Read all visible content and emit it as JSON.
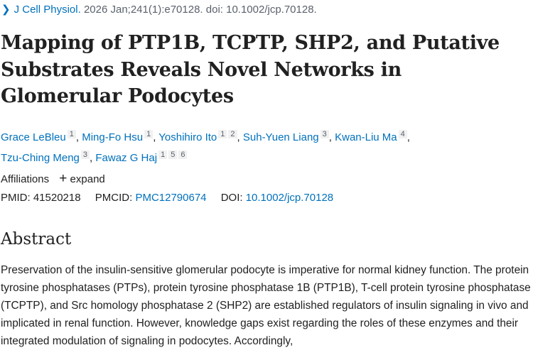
{
  "citation": {
    "journal": "J Cell Physiol.",
    "details": "2026 Jan;241(1):e70128. doi: 10.1002/jcp.70128."
  },
  "title": "Mapping of PTP1B, TCPTP, SHP2, and Putative Substrates Reveals Novel Networks in Glomerular Podocytes",
  "authors": [
    {
      "name": "Grace LeBleu",
      "affs": [
        "1"
      ]
    },
    {
      "name": "Ming-Fo Hsu",
      "affs": [
        "1"
      ]
    },
    {
      "name": "Yoshihiro Ito",
      "affs": [
        "1",
        "2"
      ]
    },
    {
      "name": "Suh-Yuen Liang",
      "affs": [
        "3"
      ]
    },
    {
      "name": "Kwan-Liu Ma",
      "affs": [
        "4"
      ]
    },
    {
      "name": "Tzu-Ching Meng",
      "affs": [
        "3"
      ]
    },
    {
      "name": "Fawaz G Haj",
      "affs": [
        "1",
        "5",
        "6"
      ]
    }
  ],
  "affiliations": {
    "label": "Affiliations",
    "expand_icon": "plus-icon",
    "expand_label": "expand"
  },
  "ids": {
    "pmid_label": "PMID:",
    "pmid": "41520218",
    "pmcid_label": "PMCID:",
    "pmcid": "PMC12790674",
    "doi_label": "DOI:",
    "doi": "10.1002/jcp.70128"
  },
  "abstract": {
    "heading": "Abstract",
    "text": "Preservation of the insulin-sensitive glomerular podocyte is imperative for normal kidney function. The protein tyrosine phosphatases (PTPs), protein tyrosine phosphatase 1B (PTP1B), T-cell protein tyrosine phosphatase (TCPTP), and Src homology phosphatase 2 (SHP2) are established regulators of insulin signaling in vivo and implicated in renal function. However, knowledge gaps exist regarding the roles of these enzymes and their integrated modulation of signaling in podocytes. Accordingly,"
  },
  "colors": {
    "link": "#0071bc",
    "text": "#212121",
    "muted": "#5b616b"
  }
}
